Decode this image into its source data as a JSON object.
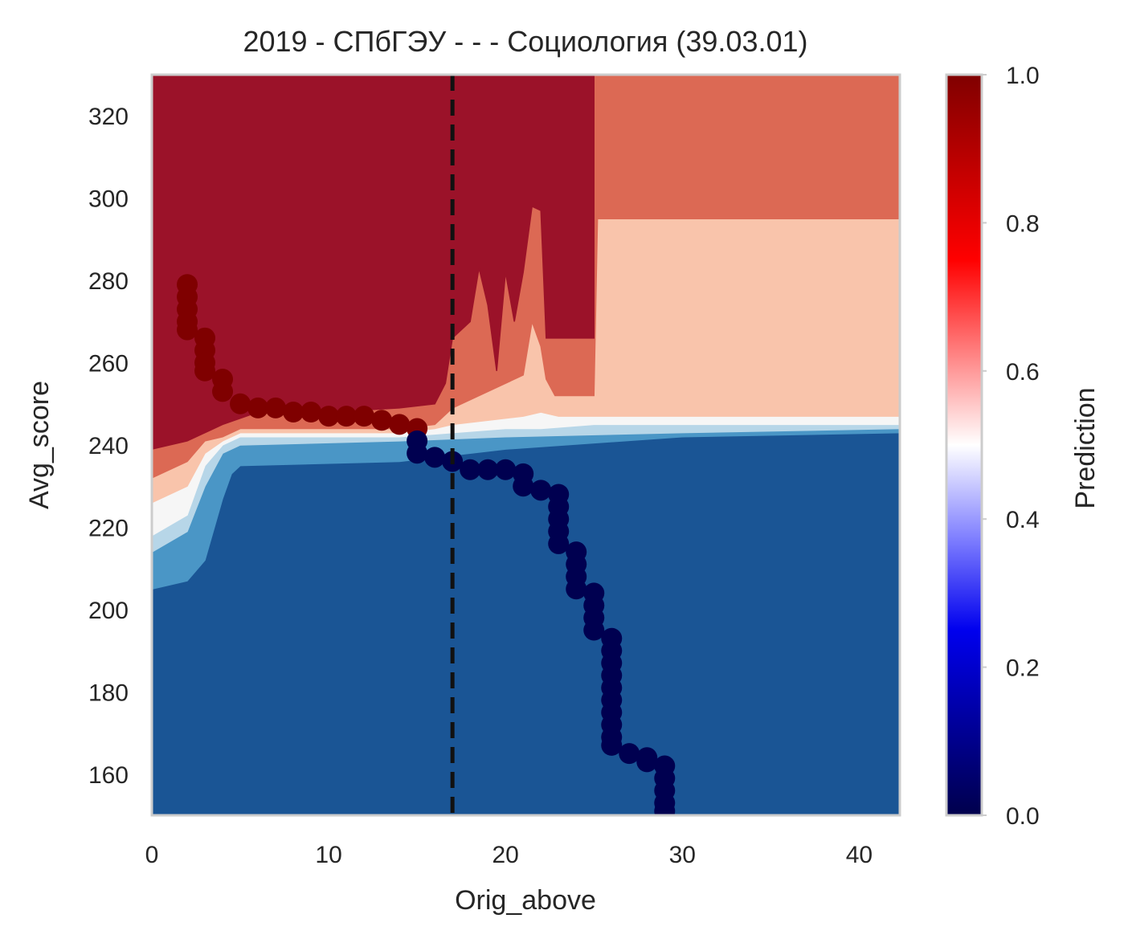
{
  "chart_data": {
    "type": "heatmap",
    "title": "2019 - СПбГЭУ - - - Социология (39.03.01)",
    "xlabel": "Orig_above",
    "ylabel": "Avg_score",
    "colorbar_label": "Prediction",
    "xlim": [
      0,
      42.3
    ],
    "ylim": [
      150,
      330
    ],
    "xticks": [
      0,
      10,
      20,
      30,
      40
    ],
    "xtick_labels": [
      "0",
      "10",
      "20",
      "30",
      "40"
    ],
    "yticks": [
      160,
      180,
      200,
      220,
      240,
      260,
      280,
      300,
      320
    ],
    "ytick_labels": [
      "160",
      "180",
      "200",
      "220",
      "240",
      "260",
      "280",
      "300",
      "320"
    ],
    "colorbar_ticks": [
      0.0,
      0.2,
      0.4,
      0.6,
      0.8,
      1.0
    ],
    "colorbar_tick_labels": [
      "0.0",
      "0.2",
      "0.4",
      "0.6",
      "0.8",
      "1.0"
    ],
    "colormap": "seismic",
    "grid": false,
    "threshold_line": {
      "x": 17,
      "style": "dashed",
      "color": "#111111"
    },
    "contour_levels": [
      {
        "level": 0.0,
        "color": "#1a5595"
      },
      {
        "level": 0.2,
        "color": "#4a96c6"
      },
      {
        "level": 0.3,
        "color": "#b7d6e8"
      },
      {
        "level": 0.5,
        "color": "#f6f6f6"
      },
      {
        "level": 0.6,
        "color": "#f9c4ab"
      },
      {
        "level": 0.7,
        "color": "#dc6954"
      },
      {
        "level": 0.9,
        "color": "#9b1229"
      }
    ],
    "contour_bands": [
      {
        "name": "band-lightblue",
        "color": "#4a96c6",
        "lower": [
          [
            0,
            205
          ],
          [
            2,
            207
          ],
          [
            3,
            212
          ],
          [
            4,
            227
          ],
          [
            4.5,
            233
          ],
          [
            5,
            235
          ],
          [
            14,
            236
          ],
          [
            20,
            239
          ],
          [
            30,
            242
          ],
          [
            42.3,
            243
          ]
        ],
        "upper": [
          [
            0,
            214
          ],
          [
            2,
            219
          ],
          [
            3,
            230
          ],
          [
            4,
            238
          ],
          [
            5,
            240
          ],
          [
            14,
            241
          ],
          [
            20,
            242
          ],
          [
            30,
            243
          ],
          [
            42.3,
            244
          ]
        ]
      },
      {
        "name": "band-paleblue",
        "color": "#b7d6e8",
        "lower": [
          [
            0,
            214
          ],
          [
            2,
            219
          ],
          [
            3,
            230
          ],
          [
            4,
            238
          ],
          [
            5,
            240
          ],
          [
            14,
            241
          ],
          [
            20,
            242
          ],
          [
            30,
            243
          ],
          [
            42.3,
            244
          ]
        ],
        "upper": [
          [
            0,
            218
          ],
          [
            2,
            223
          ],
          [
            3,
            235
          ],
          [
            4,
            240
          ],
          [
            5,
            242
          ],
          [
            14,
            242
          ],
          [
            17,
            243
          ],
          [
            20,
            244
          ],
          [
            22,
            244
          ],
          [
            25,
            245
          ],
          [
            30,
            245
          ],
          [
            42.3,
            245
          ]
        ]
      },
      {
        "name": "band-white",
        "color": "#f6f6f6",
        "lower": [
          [
            0,
            218
          ],
          [
            2,
            223
          ],
          [
            3,
            235
          ],
          [
            4,
            240
          ],
          [
            5,
            242
          ],
          [
            14,
            242
          ],
          [
            17,
            243
          ],
          [
            20,
            244
          ],
          [
            22,
            244
          ],
          [
            25,
            245
          ],
          [
            30,
            245
          ],
          [
            42.3,
            245
          ]
        ],
        "upper": [
          [
            0,
            226
          ],
          [
            2,
            230
          ],
          [
            3,
            238
          ],
          [
            4,
            241
          ],
          [
            5,
            243
          ],
          [
            14,
            243
          ],
          [
            16,
            244
          ],
          [
            17,
            245
          ],
          [
            19,
            246
          ],
          [
            21,
            247
          ],
          [
            22,
            248
          ],
          [
            23,
            247
          ],
          [
            25,
            247
          ],
          [
            42.3,
            247
          ]
        ]
      },
      {
        "name": "band-salmon",
        "color": "#f9c4ab",
        "lower": [
          [
            0,
            226
          ],
          [
            2,
            230
          ],
          [
            3,
            238
          ],
          [
            4,
            241
          ],
          [
            5,
            243
          ],
          [
            14,
            243
          ],
          [
            16,
            244
          ],
          [
            17,
            245
          ],
          [
            19,
            246
          ],
          [
            21,
            247
          ],
          [
            22,
            248
          ],
          [
            23,
            247
          ],
          [
            25,
            247
          ],
          [
            42.3,
            247
          ]
        ],
        "upper": [
          [
            0,
            232
          ],
          [
            2,
            236
          ],
          [
            3,
            241
          ],
          [
            4,
            242
          ],
          [
            5,
            244
          ],
          [
            14,
            244
          ],
          [
            16,
            245
          ],
          [
            17,
            249
          ],
          [
            18,
            251
          ],
          [
            19,
            253
          ],
          [
            20,
            255
          ],
          [
            21,
            257
          ],
          [
            21.5,
            270
          ],
          [
            22,
            264
          ],
          [
            22.3,
            256
          ],
          [
            22.8,
            252
          ],
          [
            25,
            252
          ],
          [
            25.2,
            295
          ],
          [
            42.3,
            295
          ]
        ]
      },
      {
        "name": "band-coral",
        "color": "#dc6954",
        "lower": [
          [
            0,
            232
          ],
          [
            2,
            236
          ],
          [
            3,
            241
          ],
          [
            4,
            242
          ],
          [
            5,
            244
          ],
          [
            14,
            244
          ],
          [
            16,
            245
          ],
          [
            17,
            249
          ],
          [
            18,
            251
          ],
          [
            19,
            253
          ],
          [
            20,
            255
          ],
          [
            21,
            257
          ],
          [
            21.5,
            270
          ],
          [
            22,
            264
          ],
          [
            22.3,
            256
          ],
          [
            22.8,
            252
          ],
          [
            25,
            252
          ],
          [
            25.2,
            295
          ],
          [
            42.3,
            295
          ]
        ],
        "upper": [
          [
            0,
            239
          ],
          [
            2,
            241
          ],
          [
            3,
            243
          ],
          [
            4,
            245
          ],
          [
            6,
            248
          ],
          [
            10,
            248
          ],
          [
            14,
            249
          ],
          [
            16,
            250
          ],
          [
            16.6,
            255
          ],
          [
            17,
            266
          ],
          [
            18,
            270
          ],
          [
            18.5,
            283
          ],
          [
            19,
            274
          ],
          [
            19.5,
            258
          ],
          [
            20,
            282
          ],
          [
            20.5,
            270
          ],
          [
            21,
            282
          ],
          [
            21.5,
            298
          ],
          [
            22,
            297
          ],
          [
            22.3,
            266
          ],
          [
            25,
            266
          ],
          [
            25,
            330
          ],
          [
            42.3,
            330
          ]
        ]
      },
      {
        "name": "band-darkred",
        "color": "#9b1229",
        "lower": [
          [
            0,
            239
          ],
          [
            2,
            241
          ],
          [
            3,
            243
          ],
          [
            4,
            245
          ],
          [
            6,
            248
          ],
          [
            10,
            248
          ],
          [
            14,
            249
          ],
          [
            16,
            250
          ],
          [
            16.6,
            255
          ],
          [
            17,
            266
          ],
          [
            18,
            270
          ],
          [
            18.5,
            283
          ],
          [
            19,
            274
          ],
          [
            19.5,
            258
          ],
          [
            20,
            282
          ],
          [
            20.5,
            270
          ],
          [
            21,
            282
          ],
          [
            21.5,
            298
          ],
          [
            22,
            297
          ],
          [
            22.3,
            266
          ],
          [
            25,
            266
          ],
          [
            25,
            330
          ]
        ],
        "upper": [
          [
            0,
            330
          ],
          [
            25,
            330
          ]
        ]
      }
    ],
    "series": [
      {
        "label": "1",
        "color": "#7f0000",
        "points": [
          [
            2,
            279
          ],
          [
            2,
            276
          ],
          [
            2,
            273
          ],
          [
            2,
            270
          ],
          [
            2,
            268
          ],
          [
            3,
            266
          ],
          [
            3,
            263
          ],
          [
            3,
            260
          ],
          [
            3,
            258
          ],
          [
            4,
            256
          ],
          [
            4,
            253
          ],
          [
            5,
            250
          ],
          [
            6,
            249
          ],
          [
            7,
            249
          ],
          [
            8,
            248
          ],
          [
            9,
            248
          ],
          [
            10,
            247
          ],
          [
            11,
            247
          ],
          [
            12,
            247
          ],
          [
            13,
            246
          ],
          [
            14,
            245
          ],
          [
            15,
            244
          ]
        ]
      },
      {
        "label": "0",
        "color": "#000050",
        "points": [
          [
            15,
            241
          ],
          [
            15,
            238
          ],
          [
            16,
            237
          ],
          [
            17,
            236
          ],
          [
            18,
            234
          ],
          [
            19,
            234
          ],
          [
            20,
            234
          ],
          [
            21,
            233
          ],
          [
            21,
            230
          ],
          [
            22,
            229
          ],
          [
            23,
            228
          ],
          [
            23,
            225
          ],
          [
            23,
            222
          ],
          [
            23,
            219
          ],
          [
            23,
            216
          ],
          [
            24,
            214
          ],
          [
            24,
            211
          ],
          [
            24,
            208
          ],
          [
            24,
            205
          ],
          [
            25,
            204
          ],
          [
            25,
            201
          ],
          [
            25,
            198
          ],
          [
            25,
            195
          ],
          [
            26,
            193
          ],
          [
            26,
            190
          ],
          [
            26,
            187
          ],
          [
            26,
            184
          ],
          [
            26,
            181
          ],
          [
            26,
            178
          ],
          [
            26,
            175
          ],
          [
            26,
            172
          ],
          [
            26,
            169
          ],
          [
            26,
            167
          ],
          [
            27,
            165
          ],
          [
            28,
            164
          ],
          [
            28,
            163
          ],
          [
            29,
            162
          ],
          [
            29,
            159
          ],
          [
            29,
            156
          ],
          [
            29,
            153
          ],
          [
            29,
            151
          ]
        ]
      }
    ]
  }
}
